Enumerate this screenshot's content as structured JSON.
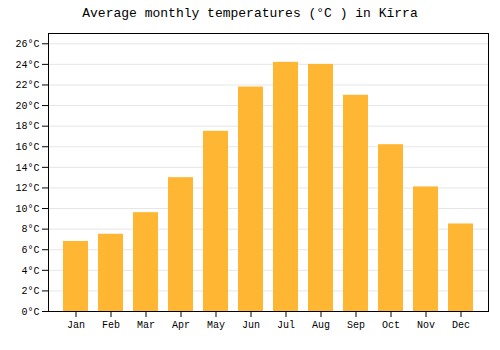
{
  "chart_data": {
    "type": "bar",
    "title": "Average monthly temperatures (°C ) in Kĭrra",
    "categories": [
      "Jan",
      "Feb",
      "Mar",
      "Apr",
      "May",
      "Jun",
      "Jul",
      "Aug",
      "Sep",
      "Oct",
      "Nov",
      "Dec"
    ],
    "values": [
      6.8,
      7.5,
      9.6,
      13.0,
      17.5,
      21.8,
      24.2,
      24.0,
      21.0,
      16.2,
      12.1,
      8.5
    ],
    "color": "#FFB733",
    "ylim": [
      0,
      27
    ],
    "yticks": [
      {
        "value": 0,
        "label": "0°C"
      },
      {
        "value": 2,
        "label": "2°C"
      },
      {
        "value": 4,
        "label": "4°C"
      },
      {
        "value": 6,
        "label": "6°C"
      },
      {
        "value": 8,
        "label": "8°C"
      },
      {
        "value": 10,
        "label": "10°C"
      },
      {
        "value": 12,
        "label": "12°C"
      },
      {
        "value": 14,
        "label": "14°C"
      },
      {
        "value": 16,
        "label": "16°C"
      },
      {
        "value": 18,
        "label": "18°C"
      },
      {
        "value": 20,
        "label": "20°C"
      },
      {
        "value": 22,
        "label": "22°C"
      },
      {
        "value": 24,
        "label": "24°C"
      },
      {
        "value": 26,
        "label": "26°C"
      }
    ],
    "grid": true
  }
}
